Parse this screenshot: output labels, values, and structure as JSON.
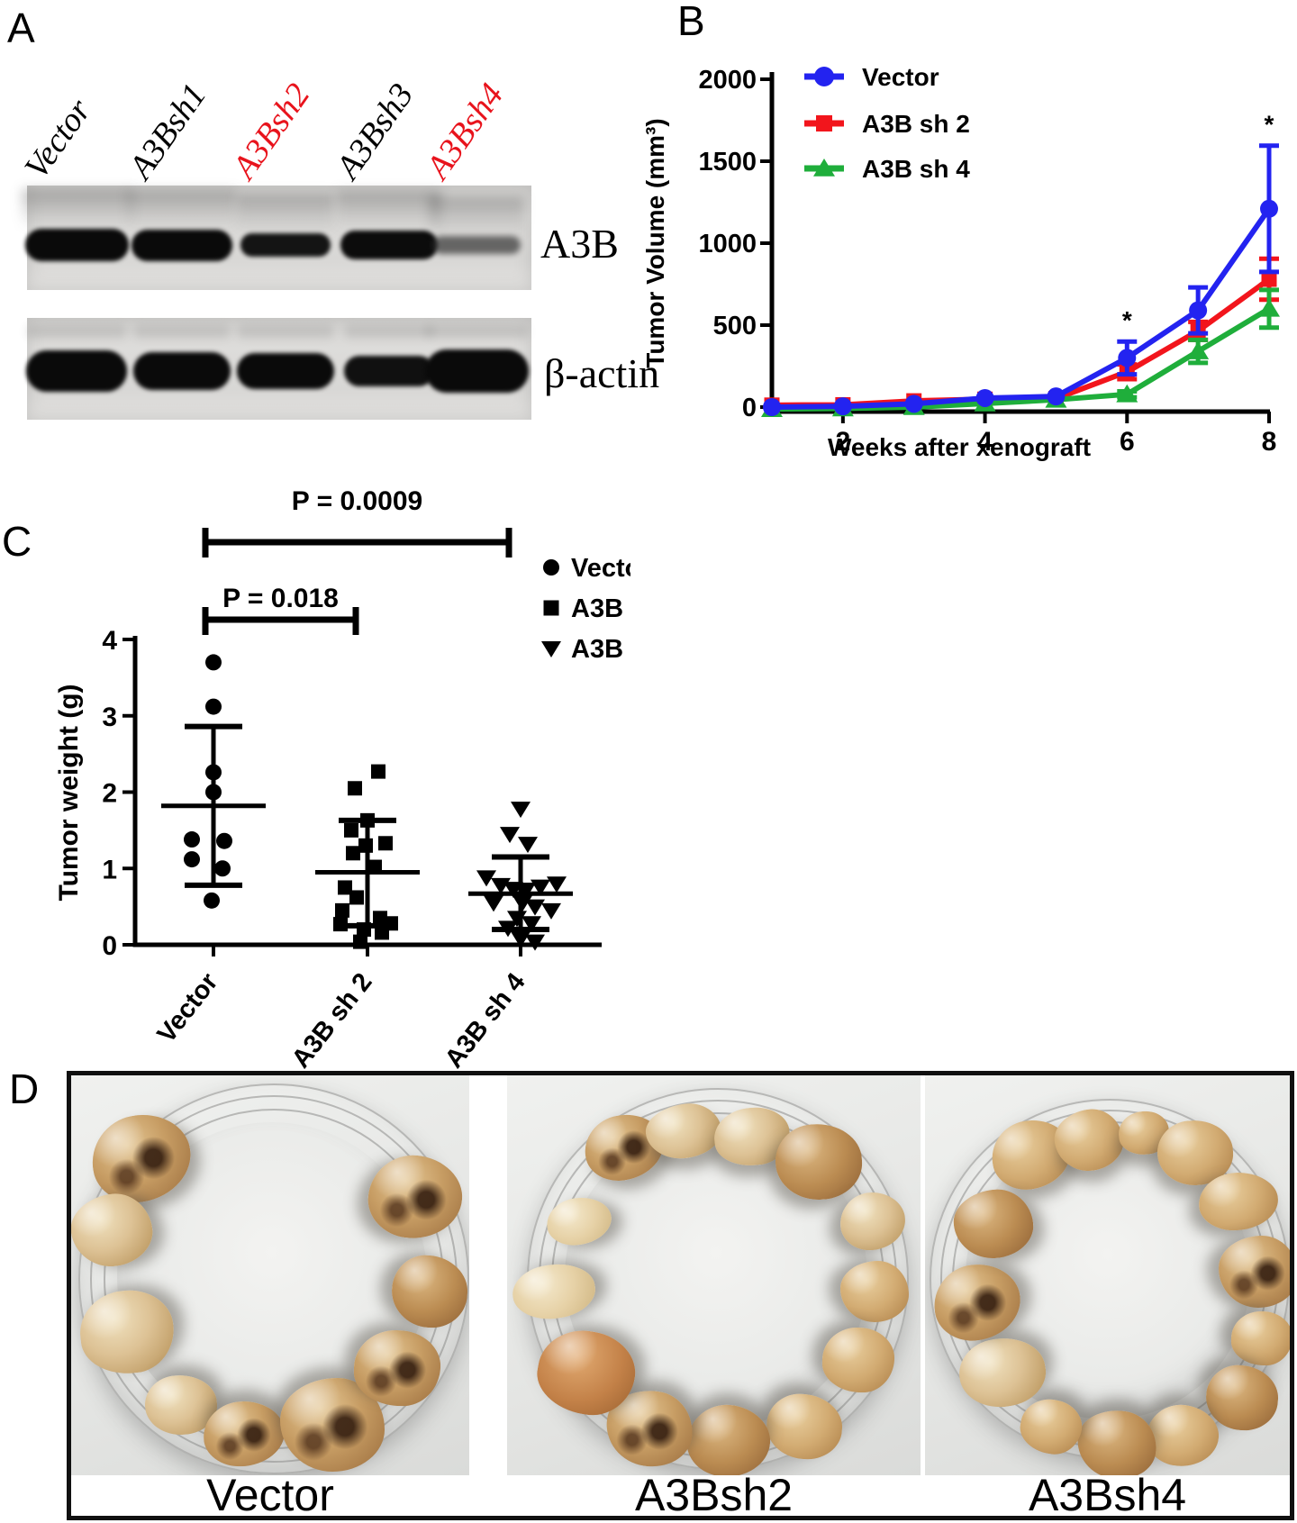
{
  "colors": {
    "red_label": "#E8131C",
    "series_blue": "#2323F0",
    "series_red": "#F2151C",
    "series_green": "#1FAE3B",
    "marker_black": "#000000"
  },
  "panelA": {
    "label": "A",
    "lane_labels": [
      {
        "text": "Vector",
        "color": "#000000"
      },
      {
        "text": "A3Bsh1",
        "color": "#000000"
      },
      {
        "text": "A3Bsh2",
        "color": "#E8131C"
      },
      {
        "text": "A3Bsh3",
        "color": "#000000"
      },
      {
        "text": "A3Bsh4",
        "color": "#E8131C"
      }
    ],
    "blots": [
      {
        "label": "A3B",
        "band_intensities": [
          1.0,
          1.0,
          0.92,
          0.98,
          0.5
        ]
      },
      {
        "label": "β-actin",
        "band_intensities": [
          1.0,
          1.0,
          1.0,
          0.95,
          1.0
        ]
      }
    ]
  },
  "panelB": {
    "label": "B"
  },
  "panelC": {
    "label": "C"
  },
  "panelD": {
    "label": "D",
    "dishes": [
      {
        "label": "Vector",
        "tumors": [
          [
            78,
            92,
            55,
            48,
            "dark"
          ],
          [
            45,
            172,
            45,
            40,
            "pale"
          ],
          [
            62,
            285,
            52,
            46,
            "pale"
          ],
          [
            122,
            366,
            40,
            33,
            "pale"
          ],
          [
            192,
            398,
            45,
            36,
            "dark"
          ],
          [
            290,
            388,
            58,
            52,
            "dark"
          ],
          [
            362,
            325,
            48,
            42,
            "dark"
          ],
          [
            398,
            240,
            42,
            40,
            "brown"
          ],
          [
            382,
            135,
            52,
            46,
            "dark"
          ]
        ]
      },
      {
        "label": "A3Bsh2",
        "tumors": [
          [
            130,
            80,
            44,
            36,
            "dark"
          ],
          [
            196,
            62,
            42,
            30,
            "pale"
          ],
          [
            272,
            68,
            42,
            32,
            "pale"
          ],
          [
            346,
            96,
            48,
            42,
            "brown"
          ],
          [
            406,
            162,
            36,
            32,
            "pale"
          ],
          [
            408,
            240,
            38,
            34,
            "tan"
          ],
          [
            390,
            316,
            40,
            36,
            "tan"
          ],
          [
            330,
            390,
            42,
            36,
            "tan"
          ],
          [
            246,
            406,
            46,
            40,
            "brown"
          ],
          [
            158,
            392,
            48,
            42,
            "dark"
          ],
          [
            88,
            330,
            54,
            46,
            "orange"
          ],
          [
            52,
            240,
            46,
            30,
            "cream"
          ],
          [
            80,
            162,
            36,
            26,
            "cream"
          ]
        ]
      },
      {
        "label": "A3Bsh4",
        "tumors": [
          [
            118,
            88,
            44,
            38,
            "tan"
          ],
          [
            182,
            72,
            38,
            34,
            "tan"
          ],
          [
            243,
            64,
            28,
            24,
            "tan"
          ],
          [
            300,
            86,
            42,
            36,
            "tan"
          ],
          [
            348,
            140,
            44,
            32,
            "tan"
          ],
          [
            370,
            218,
            44,
            40,
            "dark"
          ],
          [
            374,
            292,
            34,
            30,
            "tan"
          ],
          [
            352,
            358,
            40,
            36,
            "brown"
          ],
          [
            286,
            400,
            40,
            34,
            "tan"
          ],
          [
            213,
            410,
            44,
            38,
            "brown"
          ],
          [
            140,
            390,
            34,
            30,
            "tan"
          ],
          [
            86,
            330,
            48,
            38,
            "pale"
          ],
          [
            58,
            252,
            48,
            42,
            "dark"
          ],
          [
            76,
            165,
            44,
            38,
            "brown"
          ]
        ]
      }
    ]
  },
  "chart_data": [
    {
      "type": "line",
      "panel": "B",
      "title": "",
      "xlabel": "Weeks after xenograft",
      "ylabel": "Tumor Volume (mm³)",
      "x": [
        1,
        2,
        3,
        4,
        5,
        6,
        7,
        8
      ],
      "xticks": [
        2,
        4,
        6,
        8
      ],
      "yticks": [
        0,
        500,
        1000,
        1500,
        2000
      ],
      "ylim": [
        0,
        2000
      ],
      "grid": false,
      "legend_position": "top-left-inside",
      "series": [
        {
          "name": "Vector",
          "color": "#2323F0",
          "marker": "circle",
          "values": [
            0,
            5,
            20,
            55,
            65,
            300,
            590,
            1210
          ],
          "errors": [
            0,
            0,
            0,
            0,
            0,
            100,
            140,
            385
          ]
        },
        {
          "name": "A3B sh 2",
          "color": "#F2151C",
          "marker": "square",
          "values": [
            12,
            14,
            38,
            48,
            52,
            215,
            465,
            780
          ],
          "errors": [
            0,
            0,
            0,
            0,
            0,
            45,
            55,
            125
          ]
        },
        {
          "name": "A3B sh 4",
          "color": "#1FAE3B",
          "marker": "triangle-up",
          "values": [
            -12,
            -8,
            0,
            22,
            45,
            78,
            340,
            600
          ],
          "errors": [
            0,
            0,
            0,
            0,
            0,
            18,
            70,
            115
          ]
        }
      ],
      "annotations": [
        {
          "text": "*",
          "week": 6,
          "series": "Vector"
        },
        {
          "text": "*",
          "week": 8,
          "series": "Vector"
        }
      ]
    },
    {
      "type": "scatter",
      "panel": "C",
      "ylabel": "Tumor weight  (g)",
      "ylim": [
        0,
        4
      ],
      "yticks": [
        0,
        1,
        2,
        3,
        4
      ],
      "grid": false,
      "groups": [
        {
          "name": "Vector",
          "marker": "circle",
          "mean": 1.82,
          "sd_high": 2.86,
          "sd_low": 0.78,
          "points": [
            [
              0,
              3.7
            ],
            [
              0,
              3.12
            ],
            [
              0,
              2.26
            ],
            [
              0,
              2.0
            ],
            [
              -24,
              1.38
            ],
            [
              12,
              1.36
            ],
            [
              -24,
              1.12
            ],
            [
              10,
              1.0
            ],
            [
              -2,
              0.58
            ]
          ]
        },
        {
          "name": "A3B sh 2",
          "marker": "square",
          "mean": 0.95,
          "sd_high": 1.63,
          "sd_low": 0.25,
          "points": [
            [
              12,
              2.27
            ],
            [
              -14,
              2.05
            ],
            [
              0,
              1.63
            ],
            [
              -18,
              1.5
            ],
            [
              20,
              1.33
            ],
            [
              -2,
              1.3
            ],
            [
              -16,
              1.2
            ],
            [
              8,
              1.02
            ],
            [
              -25,
              0.75
            ],
            [
              -12,
              0.62
            ],
            [
              -28,
              0.45
            ],
            [
              14,
              0.35
            ],
            [
              26,
              0.28
            ],
            [
              -30,
              0.27
            ],
            [
              -4,
              0.2
            ],
            [
              16,
              0.16
            ],
            [
              -8,
              0.04
            ]
          ]
        },
        {
          "name": "A3B sh 4",
          "marker": "triangle-down",
          "mean": 0.67,
          "sd_high": 1.15,
          "sd_low": 0.2,
          "points": [
            [
              0,
              1.78
            ],
            [
              -12,
              1.45
            ],
            [
              8,
              1.32
            ],
            [
              -38,
              0.88
            ],
            [
              -22,
              0.78
            ],
            [
              -8,
              0.73
            ],
            [
              6,
              0.72
            ],
            [
              22,
              0.76
            ],
            [
              40,
              0.8
            ],
            [
              -30,
              0.55
            ],
            [
              2,
              0.55
            ],
            [
              16,
              0.5
            ],
            [
              34,
              0.45
            ],
            [
              -4,
              0.35
            ],
            [
              12,
              0.28
            ],
            [
              -14,
              0.22
            ],
            [
              0,
              0.08
            ],
            [
              16,
              0.04
            ]
          ]
        }
      ],
      "comparisons": [
        {
          "label": "P = 0.0009",
          "from": 0,
          "to": 2
        },
        {
          "label": "P = 0.018",
          "from": 0,
          "to": 1
        }
      ]
    }
  ]
}
